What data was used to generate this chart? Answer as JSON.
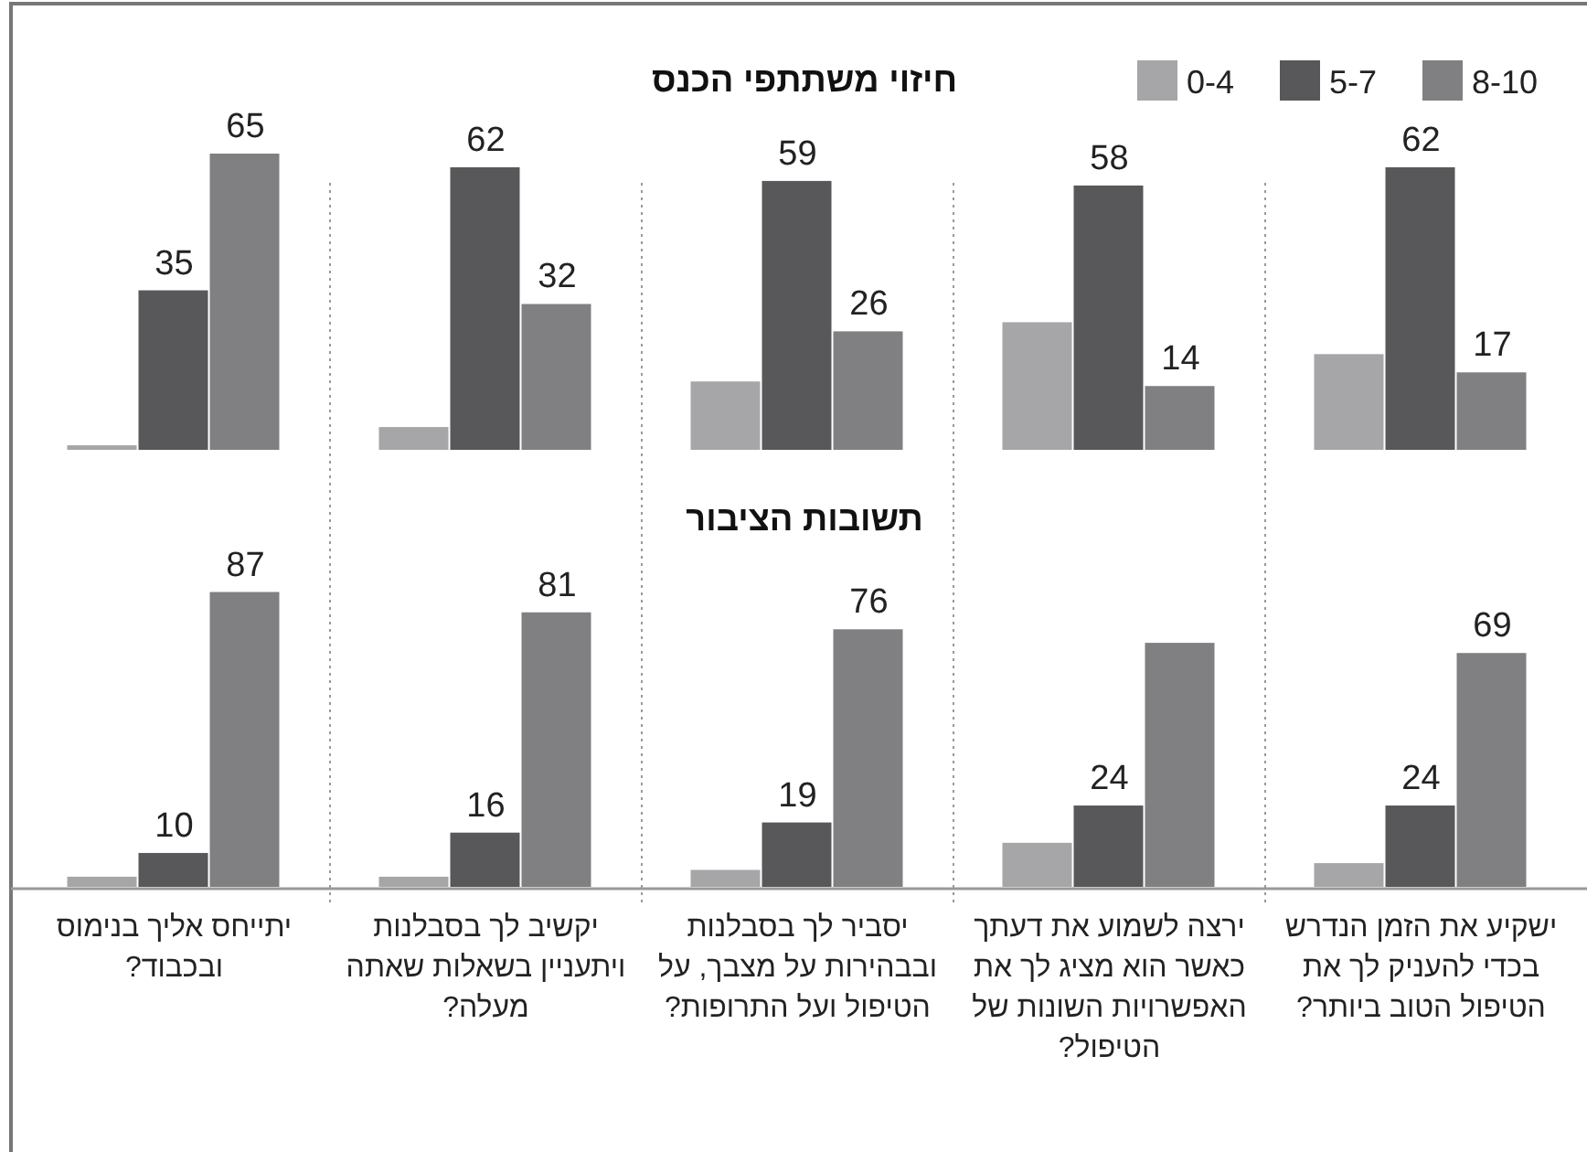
{
  "chart_data": [
    {
      "type": "bar",
      "title": "חיזוי משתתפי הכנס",
      "legend": "top right",
      "tick_labels": false,
      "categories": [
        null,
        null,
        null,
        null,
        null
      ],
      "series": [
        {
          "name": "0-4",
          "color": "#a6a6a8",
          "values": [
            1,
            5,
            15,
            28,
            21
          ],
          "value_labels": [
            null,
            null,
            null,
            null,
            null
          ]
        },
        {
          "name": "5-7",
          "color": "#58585a",
          "values": [
            35,
            62,
            59,
            58,
            62
          ],
          "value_labels": [
            "35",
            "62",
            "59",
            "58",
            "62"
          ]
        },
        {
          "name": "8-10",
          "color": "#808083",
          "values": [
            65,
            32,
            26,
            14,
            17
          ],
          "value_labels": [
            "65",
            "32",
            "26",
            "14",
            "17"
          ]
        }
      ]
    },
    {
      "type": "bar",
      "title": "תשובות הציבור",
      "categories": [
        "יתייחס אליך בנימוס ובכבוד?",
        "יקשיב לך בסבלנות ויתעניין בשאלות שאתה מעלה?",
        "יסביר לך בסבלנות ובבהירות על מצבך, על הטיפול ועל התרופות?",
        "ירצה לשמוע את דעתך כאשר הוא מציג לך את האפשרויות השונות של הטיפול?",
        "ישקיע את הזמן הנדרש בכדי להעניק לך את הטיפול הטוב ביותר?"
      ],
      "series": [
        {
          "color": "#a6a6a8",
          "values": [
            3,
            3,
            5,
            13,
            7
          ],
          "value_labels": [
            null,
            null,
            null,
            null,
            null
          ]
        },
        {
          "color": "#58585a",
          "values": [
            10,
            16,
            19,
            24,
            24
          ],
          "value_labels": [
            "10",
            "16",
            "19",
            "24",
            "24"
          ]
        },
        {
          "color": "#808083",
          "values": [
            87,
            81,
            76,
            72,
            69
          ],
          "value_labels": [
            "87",
            "81",
            "76",
            null,
            "69"
          ]
        }
      ]
    }
  ]
}
